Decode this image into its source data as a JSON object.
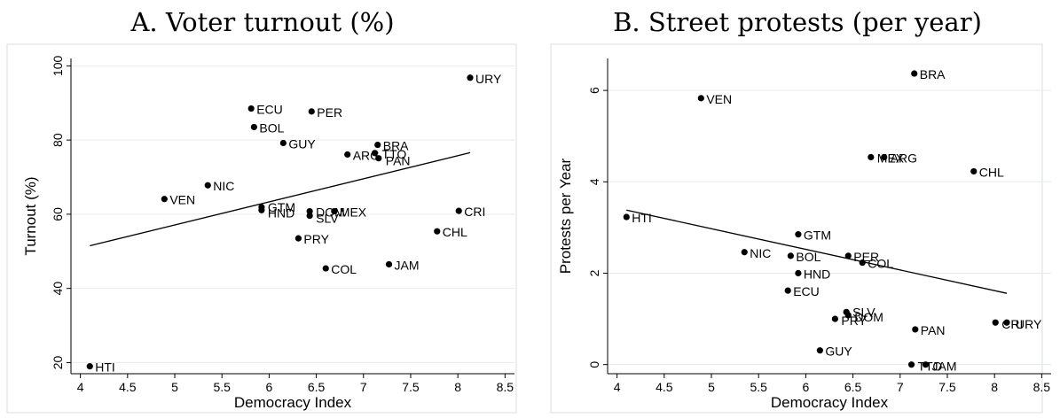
{
  "chart_data": [
    {
      "id": "a",
      "type": "scatter",
      "title": "A. Voter turnout (%)",
      "xlabel": "Democracy Index",
      "ylabel": "Turnout (%)",
      "xlim": [
        3.9,
        8.6
      ],
      "ylim": [
        17,
        102
      ],
      "xticks": [
        4,
        4.5,
        5,
        5.5,
        6,
        6.5,
        7,
        7.5,
        8,
        8.5
      ],
      "xtick_labels": [
        "4",
        "4.5",
        "5",
        "5.5",
        "6",
        "6.5",
        "7",
        "7.5",
        "8",
        "8.5"
      ],
      "yticks": [
        20,
        40,
        60,
        80,
        100
      ],
      "ytick_labels": [
        "20",
        "40",
        "60",
        "80",
        "100"
      ],
      "grid": true,
      "points": [
        {
          "label": "URY",
          "x": 8.13,
          "y": 96.8
        },
        {
          "label": "ECU",
          "x": 5.81,
          "y": 88.5
        },
        {
          "label": "PER",
          "x": 6.45,
          "y": 87.7
        },
        {
          "label": "BOL",
          "x": 5.84,
          "y": 83.5
        },
        {
          "label": "GUY",
          "x": 6.15,
          "y": 79.2
        },
        {
          "label": "BRA",
          "x": 7.15,
          "y": 78.7
        },
        {
          "label": "ARG",
          "x": 6.83,
          "y": 76.1
        },
        {
          "label": "TTO",
          "x": 7.12,
          "y": 76.5
        },
        {
          "label": "PAN",
          "x": 7.16,
          "y": 75.1
        },
        {
          "label": "NIC",
          "x": 5.35,
          "y": 67.8
        },
        {
          "label": "VEN",
          "x": 4.89,
          "y": 64.1
        },
        {
          "label": "GTM",
          "x": 5.92,
          "y": 61.9
        },
        {
          "label": "HND",
          "x": 5.92,
          "y": 61.1
        },
        {
          "label": "DOM",
          "x": 6.43,
          "y": 60.8
        },
        {
          "label": "MEX",
          "x": 6.69,
          "y": 60.8
        },
        {
          "label": "SLV",
          "x": 6.43,
          "y": 59.6
        },
        {
          "label": "CRI",
          "x": 8.01,
          "y": 60.9
        },
        {
          "label": "CHL",
          "x": 7.78,
          "y": 55.4
        },
        {
          "label": "PRY",
          "x": 6.31,
          "y": 53.5
        },
        {
          "label": "JAM",
          "x": 7.27,
          "y": 46.5
        },
        {
          "label": "COL",
          "x": 6.6,
          "y": 45.4
        },
        {
          "label": "HTI",
          "x": 4.1,
          "y": 19.0
        }
      ],
      "fit_line": {
        "x": [
          4.1,
          8.13
        ],
        "y": [
          51.5,
          76.6
        ]
      }
    },
    {
      "id": "b",
      "type": "scatter",
      "title": "B. Street protests (per year)",
      "xlabel": "Democracy Index",
      "ylabel": "Protests per Year",
      "xlim": [
        3.9,
        8.6
      ],
      "ylim": [
        -0.2,
        6.7
      ],
      "xticks": [
        4,
        4.5,
        5,
        5.5,
        6,
        6.5,
        7,
        7.5,
        8,
        8.5
      ],
      "xtick_labels": [
        "4",
        "4.5",
        "5",
        "5.5",
        "6",
        "6.5",
        "7",
        "7.5",
        "8",
        "8.5"
      ],
      "yticks": [
        0,
        2,
        4,
        6
      ],
      "ytick_labels": [
        "0",
        "2",
        "4",
        "6"
      ],
      "grid": true,
      "points": [
        {
          "label": "BRA",
          "x": 7.15,
          "y": 6.37
        },
        {
          "label": "VEN",
          "x": 4.89,
          "y": 5.83
        },
        {
          "label": "MEX",
          "x": 6.69,
          "y": 4.54
        },
        {
          "label": "ARG",
          "x": 6.83,
          "y": 4.54
        },
        {
          "label": "CHL",
          "x": 7.78,
          "y": 4.23
        },
        {
          "label": "HTI",
          "x": 4.1,
          "y": 3.23
        },
        {
          "label": "GTM",
          "x": 5.92,
          "y": 2.85
        },
        {
          "label": "NIC",
          "x": 5.35,
          "y": 2.46
        },
        {
          "label": "BOL",
          "x": 5.84,
          "y": 2.38
        },
        {
          "label": "PER",
          "x": 6.45,
          "y": 2.38
        },
        {
          "label": "COL",
          "x": 6.6,
          "y": 2.23
        },
        {
          "label": "HND",
          "x": 5.92,
          "y": 2.0
        },
        {
          "label": "ECU",
          "x": 5.81,
          "y": 1.62
        },
        {
          "label": "SLV",
          "x": 6.43,
          "y": 1.15
        },
        {
          "label": "DOM",
          "x": 6.45,
          "y": 1.08
        },
        {
          "label": "PRY",
          "x": 6.31,
          "y": 1.0
        },
        {
          "label": "CRI",
          "x": 8.01,
          "y": 0.92
        },
        {
          "label": "URY",
          "x": 8.13,
          "y": 0.92
        },
        {
          "label": "PAN",
          "x": 7.16,
          "y": 0.77
        },
        {
          "label": "GUY",
          "x": 6.15,
          "y": 0.31
        },
        {
          "label": "TTO",
          "x": 7.12,
          "y": 0.0
        },
        {
          "label": "JAM",
          "x": 7.27,
          "y": 0.0
        }
      ],
      "fit_line": {
        "x": [
          4.1,
          8.13
        ],
        "y": [
          3.38,
          1.56
        ]
      }
    }
  ]
}
